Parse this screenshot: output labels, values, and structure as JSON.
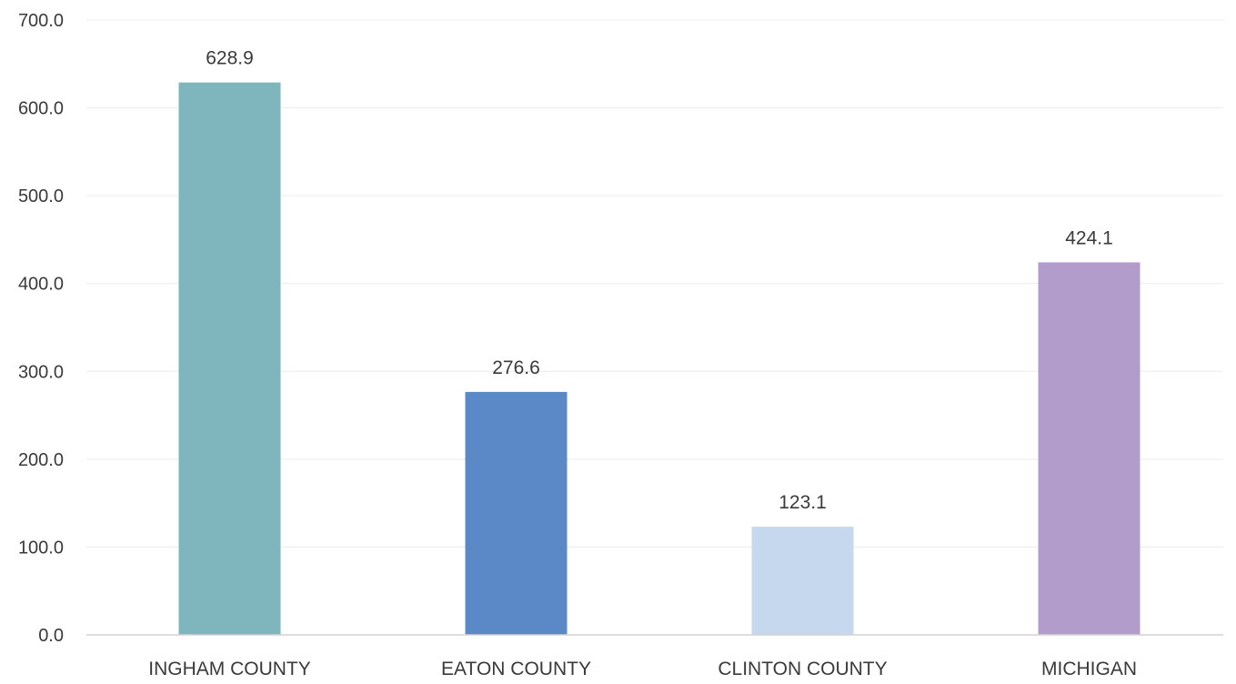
{
  "chart_data": {
    "type": "bar",
    "title": "",
    "xlabel": "",
    "ylabel": "",
    "categories": [
      "INGHAM COUNTY",
      "EATON COUNTY",
      "CLINTON COUNTY",
      "MICHIGAN"
    ],
    "values": [
      628.9,
      276.6,
      123.1,
      424.1
    ],
    "value_labels": [
      "628.9",
      "276.6",
      "123.1",
      "424.1"
    ],
    "colors": [
      "#7fb6bd",
      "#5b89c8",
      "#c6d8ee",
      "#b19ccb"
    ],
    "ylim": [
      0,
      700
    ],
    "yticks": [
      0,
      100,
      200,
      300,
      400,
      500,
      600,
      700
    ],
    "ytick_labels": [
      "0.0",
      "100.0",
      "200.0",
      "300.0",
      "400.0",
      "500.0",
      "600.0",
      "700.0"
    ],
    "grid": true,
    "legend": "none"
  }
}
